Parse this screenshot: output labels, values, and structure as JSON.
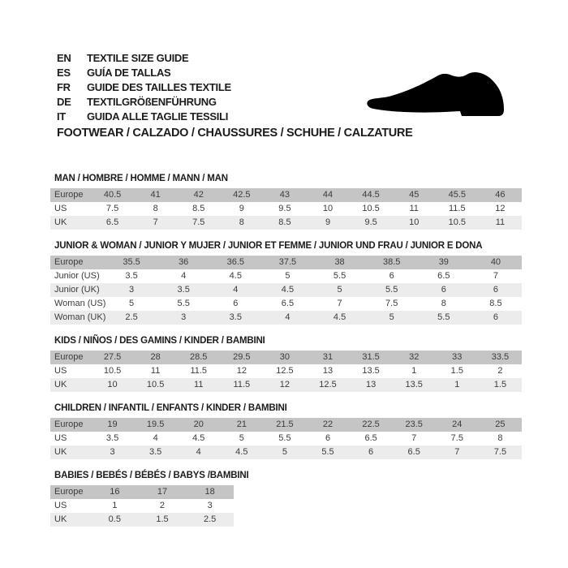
{
  "header": {
    "languages": [
      {
        "code": "EN",
        "label": "TEXTILE SIZE GUIDE"
      },
      {
        "code": "ES",
        "label": "GUÍA DE TALLAS"
      },
      {
        "code": "FR",
        "label": "GUIDE DES TAILLES TEXTILE"
      },
      {
        "code": "DE",
        "label": "TEXTILGRÖßENFÜHRUNG"
      },
      {
        "code": "IT",
        "label": "GUIDA ALLE TAGLIE TESSILI"
      }
    ],
    "category_title": "FOOTWEAR / CALZADO / CHAUSSURES / SCHUHE / CALZATURE",
    "shoe_icon": "dress-shoe-silhouette"
  },
  "colors": {
    "table_header_row_bg": "#c5c5c5",
    "table_alt_row_bg": "#ececec",
    "table_text": "#3c3c3c",
    "title_text": "#1c1c1c",
    "shoe": "#000000",
    "page_bg": "#ffffff"
  },
  "sections": [
    {
      "title": "MAN / HOMBRE / HOMME / MANN / MAN",
      "rows": [
        {
          "label": "Europe",
          "values": [
            "40.5",
            "41",
            "42",
            "42.5",
            "43",
            "44",
            "44.5",
            "45",
            "45.5",
            "46"
          ]
        },
        {
          "label": "US",
          "values": [
            "7.5",
            "8",
            "8.5",
            "9",
            "9.5",
            "10",
            "10.5",
            "11",
            "11.5",
            "12"
          ]
        },
        {
          "label": "UK",
          "values": [
            "6.5",
            "7",
            "7.5",
            "8",
            "8.5",
            "9",
            "9.5",
            "10",
            "10.5",
            "11"
          ]
        }
      ]
    },
    {
      "title": "JUNIOR & WOMAN / JUNIOR Y MUJER / JUNIOR ET FEMME / JUNIOR UND FRAU / JUNIOR E DONA",
      "rows": [
        {
          "label": "Europe",
          "values": [
            "35.5",
            "36",
            "36.5",
            "37.5",
            "38",
            "38.5",
            "39",
            "40"
          ]
        },
        {
          "label": "Junior (US)",
          "values": [
            "3.5",
            "4",
            "4.5",
            "5",
            "5.5",
            "6",
            "6.5",
            "7"
          ]
        },
        {
          "label": "Junior (UK)",
          "values": [
            "3",
            "3.5",
            "4",
            "4.5",
            "5",
            "5.5",
            "6",
            "6"
          ]
        },
        {
          "label": "Woman (US)",
          "values": [
            "5",
            "5.5",
            "6",
            "6.5",
            "7",
            "7.5",
            "8",
            "8.5"
          ]
        },
        {
          "label": "Woman (UK)",
          "values": [
            "2.5",
            "3",
            "3.5",
            "4",
            "4.5",
            "5",
            "5.5",
            "6"
          ]
        }
      ]
    },
    {
      "title": "KIDS / NIÑOS / DES GAMINS / KINDER / BAMBINI",
      "rows": [
        {
          "label": "Europe",
          "values": [
            "27.5",
            "28",
            "28.5",
            "29.5",
            "30",
            "31",
            "31.5",
            "32",
            "33",
            "33.5"
          ]
        },
        {
          "label": "US",
          "values": [
            "10.5",
            "11",
            "11.5",
            "12",
            "12.5",
            "13",
            "13.5",
            "1",
            "1.5",
            "2"
          ]
        },
        {
          "label": "UK",
          "values": [
            "10",
            "10.5",
            "11",
            "11.5",
            "12",
            "12.5",
            "13",
            "13.5",
            "1",
            "1.5"
          ]
        }
      ]
    },
    {
      "title": "CHILDREN / INFANTIL / ENFANTS / KINDER / BAMBINI",
      "rows": [
        {
          "label": "Europe",
          "values": [
            "19",
            "19.5",
            "20",
            "21",
            "21.5",
            "22",
            "22.5",
            "23.5",
            "24",
            "25"
          ]
        },
        {
          "label": "US",
          "values": [
            "3.5",
            "4",
            "4.5",
            "5",
            "5.5",
            "6",
            "6.5",
            "7",
            "7.5",
            "8"
          ]
        },
        {
          "label": "UK",
          "values": [
            "3",
            "3.5",
            "4",
            "4.5",
            "5",
            "5.5",
            "6",
            "6.5",
            "7",
            "7.5"
          ]
        }
      ]
    },
    {
      "title": "BABIES / BEBÉS / BÉBÉS / BABYS /BAMBINI",
      "rows": [
        {
          "label": "Europe",
          "values": [
            "16",
            "17",
            "18"
          ]
        },
        {
          "label": "US",
          "values": [
            "1",
            "2",
            "3"
          ]
        },
        {
          "label": "UK",
          "values": [
            "0.5",
            "1.5",
            "2.5"
          ]
        }
      ]
    }
  ]
}
